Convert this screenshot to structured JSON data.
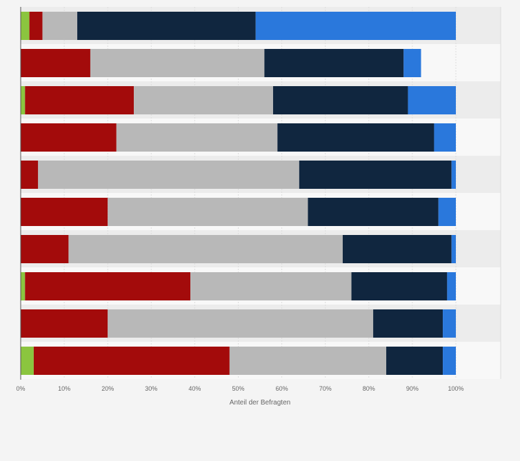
{
  "chart_data": {
    "type": "bar",
    "orientation": "horizontal",
    "stacked": true,
    "xlabel": "Anteil der Befragten",
    "xlim": [
      0,
      100
    ],
    "x_ticks": [
      "0%",
      "10%",
      "20%",
      "30%",
      "40%",
      "50%",
      "60%",
      "70%",
      "80%",
      "90%",
      "100%"
    ],
    "grid": true,
    "categories": [
      "",
      "",
      "",
      "",
      "",
      "",
      "",
      "",
      "",
      ""
    ],
    "series": [
      {
        "color": "#8bc53f",
        "values": [
          2,
          0,
          1,
          0,
          0,
          0,
          0,
          1,
          0,
          3
        ]
      },
      {
        "color": "#a30b0b",
        "values": [
          3,
          16,
          25,
          22,
          4,
          20,
          11,
          38,
          20,
          45
        ]
      },
      {
        "color": "#b8b8b8",
        "values": [
          8,
          40,
          32,
          37,
          60,
          46,
          63,
          37,
          61,
          36
        ]
      },
      {
        "color": "#10263f",
        "values": [
          41,
          32,
          31,
          36,
          35,
          30,
          25,
          22,
          16,
          13
        ]
      },
      {
        "color": "#2a78dc",
        "values": [
          46,
          4,
          11,
          5,
          1,
          4,
          1,
          2,
          3,
          3
        ]
      }
    ]
  }
}
